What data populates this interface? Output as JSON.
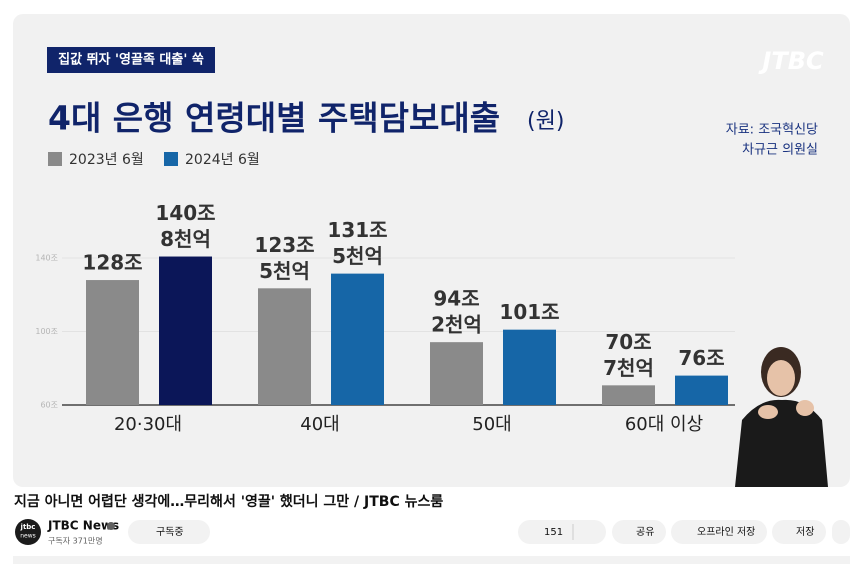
{
  "video": {
    "tag": "집값 뛰자 '영끌족 대출' 쑥",
    "logo": "JTBC",
    "source": [
      "자료: 조국혁신당",
      "차규근 의원실"
    ],
    "chart_data": {
      "type": "bar",
      "title": "4대 은행 연령대별 주택담보대출",
      "unit": "(원)",
      "categories": [
        "20·30대",
        "40대",
        "50대",
        "60대 이상"
      ],
      "series": [
        {
          "name": "2023년 6월",
          "color": "#8a8a8a",
          "values": [
            128,
            123.5,
            94.2,
            70.7
          ],
          "value_labels": [
            [
              "128조"
            ],
            [
              "123조",
              "5천억"
            ],
            [
              "94조",
              "2천억"
            ],
            [
              "70조",
              "7천억"
            ]
          ]
        },
        {
          "name": "2024년 6월",
          "color": "#1666a7",
          "colors": [
            "#0b1658",
            "#1666a7",
            "#1666a7",
            "#1666a7"
          ],
          "values": [
            140.8,
            131.5,
            101,
            76
          ],
          "value_labels": [
            [
              "140조",
              "8천억"
            ],
            [
              "131조",
              "5천억"
            ],
            [
              "101조"
            ],
            [
              "76조"
            ]
          ]
        }
      ],
      "ylim": [
        60,
        140
      ],
      "yticks": [
        {
          "value": 60,
          "label": "60조"
        },
        {
          "value": 100,
          "label": "100조"
        },
        {
          "value": 140,
          "label": "140조"
        }
      ],
      "grid": true
    }
  },
  "title": "지금 아니면 어렵단 생각에…무리해서 '영끌' 했더니 그만 / JTBC 뉴스룸",
  "channel": {
    "avatar": [
      "jtbc",
      "news"
    ],
    "name": "JTBC News",
    "subscribers": "구독자 371만명",
    "subscribe": "구독중"
  },
  "actions": {
    "likes": 151,
    "share": "공유",
    "download": "오프라인 저장",
    "save": "저장"
  }
}
